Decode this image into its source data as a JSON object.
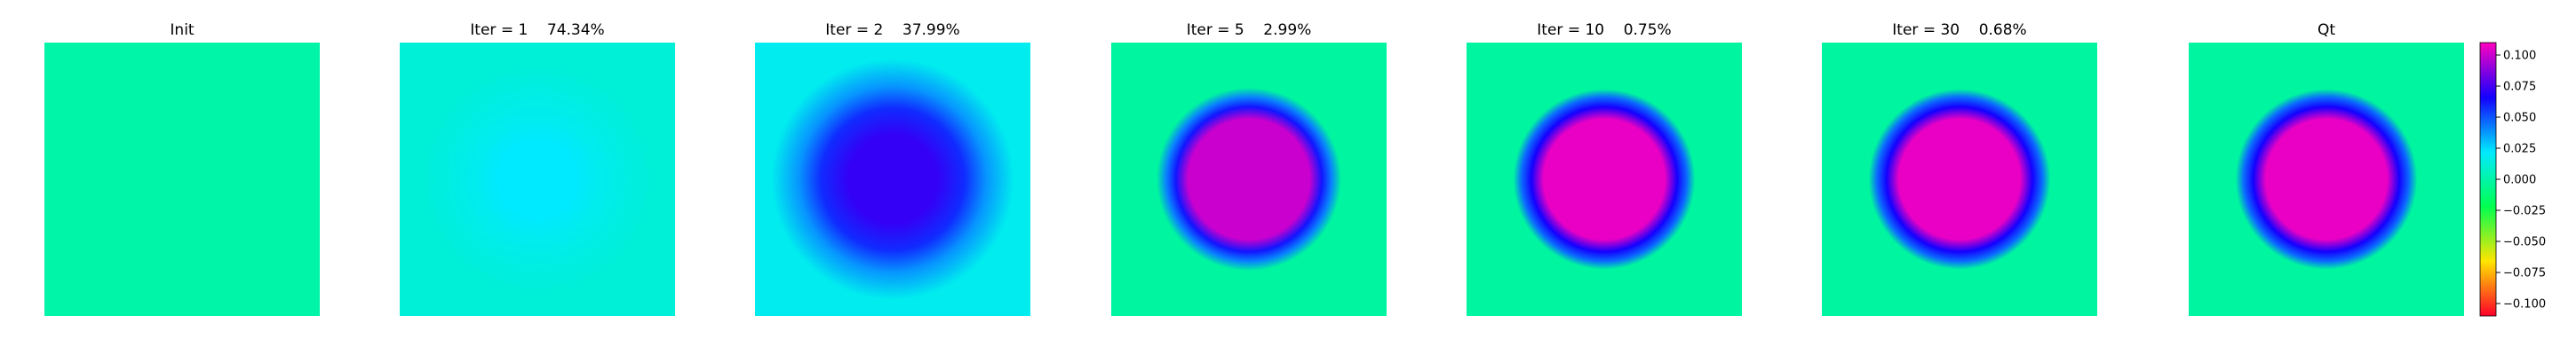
{
  "chart_data": {
    "type": "heatmap",
    "axes_visible": false,
    "colormap": "gist_rainbow (red → yellow → green → cyan → blue → magenta)",
    "panels": [
      {
        "title": "Init",
        "field": {
          "center_value": 0.0,
          "background_value": 0.0,
          "ring_value": 0.0
        }
      },
      {
        "title": "Iter = 1    74.34%",
        "field": {
          "center_value": 0.022,
          "background_value": 0.012,
          "ring_value": 0.018
        }
      },
      {
        "title": "Iter = 2    37.99%",
        "field": {
          "center_value": 0.072,
          "background_value": 0.018,
          "ring_value": 0.058
        }
      },
      {
        "title": "Iter = 5    2.99%",
        "field": {
          "center_value": 0.1,
          "background_value": -0.002,
          "ring_value": 0.062
        }
      },
      {
        "title": "Iter = 10    0.75%",
        "field": {
          "center_value": 0.106,
          "background_value": -0.002,
          "ring_value": 0.066
        }
      },
      {
        "title": "Iter = 30    0.68%",
        "field": {
          "center_value": 0.106,
          "background_value": -0.002,
          "ring_value": 0.066
        }
      },
      {
        "title": "Qt",
        "field": {
          "center_value": 0.106,
          "background_value": -0.002,
          "ring_value": 0.066
        }
      }
    ],
    "colorbar": {
      "vmin": -0.11,
      "vmax": 0.11,
      "ticks": [
        0.1,
        0.075,
        0.05,
        0.025,
        0.0,
        -0.025,
        -0.05,
        -0.075,
        -0.1
      ],
      "tick_labels": [
        "0.100",
        "0.075",
        "0.050",
        "0.025",
        "0.000",
        "−0.025",
        "−0.050",
        "−0.075",
        "−0.100"
      ]
    }
  }
}
